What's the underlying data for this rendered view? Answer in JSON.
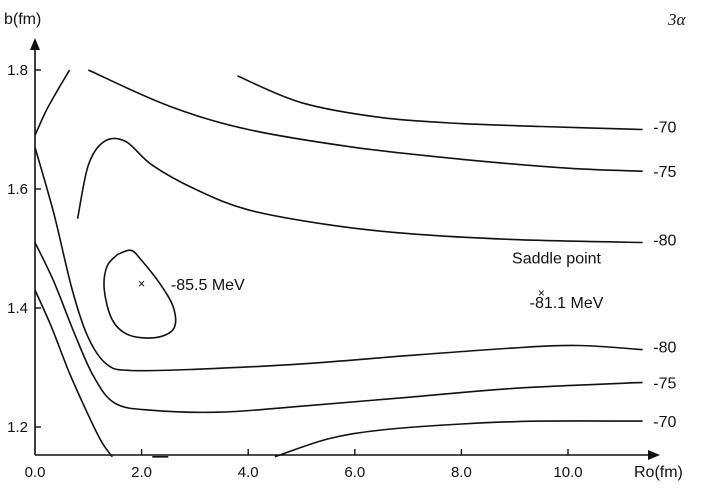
{
  "chart_data": {
    "type": "contour",
    "corner_label": "3α",
    "xlabel": "Ro(fm)",
    "ylabel": "b(fm)",
    "xlim": [
      0,
      11.5
    ],
    "ylim": [
      1.15,
      1.85
    ],
    "x_ticks": [
      {
        "value": 0,
        "label": "0.0"
      },
      {
        "value": 2,
        "label": "2.0"
      },
      {
        "value": 4,
        "label": "4.0"
      },
      {
        "value": 6,
        "label": "6.0"
      },
      {
        "value": 8,
        "label": "8.0"
      },
      {
        "value": 10,
        "label": "10.0"
      }
    ],
    "y_ticks": [
      {
        "value": 1.2,
        "label": "1.2"
      },
      {
        "value": 1.4,
        "label": "1.4"
      },
      {
        "value": 1.6,
        "label": "1.6"
      },
      {
        "value": 1.8,
        "label": "1.8"
      }
    ],
    "grid": false,
    "contours": [
      {
        "level": -70,
        "label": "-70",
        "label_at": [
          11.6,
          1.705
        ],
        "points": [
          [
            3.8,
            1.79
          ],
          [
            5.0,
            1.745
          ],
          [
            6.5,
            1.72
          ],
          [
            8.0,
            1.71
          ],
          [
            9.5,
            1.705
          ],
          [
            11.4,
            1.7
          ]
        ]
      },
      {
        "level": -70,
        "label": "",
        "label_at": null,
        "points": [
          [
            0.0,
            1.69
          ],
          [
            0.2,
            1.73
          ],
          [
            0.45,
            1.77
          ],
          [
            0.65,
            1.8
          ]
        ]
      },
      {
        "level": -75,
        "label": "-75",
        "label_at": [
          11.6,
          1.63
        ],
        "points": [
          [
            1.0,
            1.8
          ],
          [
            2.5,
            1.74
          ],
          [
            4.0,
            1.7
          ],
          [
            6.0,
            1.67
          ],
          [
            8.0,
            1.65
          ],
          [
            10.0,
            1.635
          ],
          [
            11.4,
            1.63
          ]
        ]
      },
      {
        "level": -80,
        "label": "-80",
        "label_at": [
          11.6,
          1.515
        ],
        "points": [
          [
            0.0,
            1.67
          ],
          [
            0.35,
            1.56
          ],
          [
            0.7,
            1.43
          ],
          [
            1.0,
            1.35
          ],
          [
            1.35,
            1.305
          ],
          [
            1.8,
            1.295
          ],
          [
            3.0,
            1.297
          ],
          [
            5.0,
            1.306
          ],
          [
            7.0,
            1.32
          ],
          [
            9.0,
            1.333
          ],
          [
            10.2,
            1.337
          ],
          [
            11.4,
            1.33
          ]
        ]
      },
      {
        "level": -80,
        "label": "-80",
        "label_at": [
          11.6,
          1.335
        ],
        "points": [
          [
            0.8,
            1.55
          ],
          [
            1.0,
            1.64
          ],
          [
            1.3,
            1.68
          ],
          [
            1.7,
            1.68
          ],
          [
            2.2,
            1.64
          ],
          [
            3.0,
            1.6
          ],
          [
            4.0,
            1.565
          ],
          [
            5.5,
            1.54
          ],
          [
            7.0,
            1.525
          ],
          [
            9.0,
            1.515
          ],
          [
            11.4,
            1.51
          ]
        ]
      },
      {
        "level": -75,
        "label": "-75",
        "label_at": [
          11.6,
          1.275
        ],
        "points": [
          [
            0.0,
            1.51
          ],
          [
            0.35,
            1.445
          ],
          [
            0.75,
            1.355
          ],
          [
            1.1,
            1.285
          ],
          [
            1.5,
            1.24
          ],
          [
            2.2,
            1.228
          ],
          [
            3.5,
            1.225
          ],
          [
            5.0,
            1.235
          ],
          [
            7.0,
            1.25
          ],
          [
            9.0,
            1.265
          ],
          [
            11.4,
            1.275
          ]
        ]
      },
      {
        "level": -70,
        "label": "-70",
        "label_at": [
          11.6,
          1.21
        ],
        "points": [
          [
            0.0,
            1.43
          ],
          [
            0.3,
            1.37
          ],
          [
            0.65,
            1.29
          ],
          [
            1.0,
            1.22
          ],
          [
            1.25,
            1.175
          ],
          [
            1.45,
            1.15
          ]
        ]
      },
      {
        "level": -70,
        "label": "",
        "label_at": null,
        "points": [
          [
            2.2,
            1.15
          ],
          [
            2.5,
            1.15
          ]
        ]
      },
      {
        "level": -70,
        "label": "",
        "label_at": null,
        "points": [
          [
            4.5,
            1.15
          ],
          [
            5.5,
            1.18
          ],
          [
            6.5,
            1.195
          ],
          [
            8.0,
            1.205
          ],
          [
            9.5,
            1.21
          ],
          [
            11.4,
            1.21
          ]
        ]
      }
    ],
    "minimum_contour": {
      "label": "-85.5 MeV",
      "center": [
        2.0,
        1.44
      ],
      "points": [
        [
          1.55,
          1.49
        ],
        [
          1.35,
          1.47
        ],
        [
          1.3,
          1.43
        ],
        [
          1.45,
          1.38
        ],
        [
          1.75,
          1.355
        ],
        [
          2.25,
          1.35
        ],
        [
          2.6,
          1.365
        ],
        [
          2.6,
          1.4
        ],
        [
          2.35,
          1.44
        ],
        [
          2.0,
          1.48
        ],
        [
          1.8,
          1.497
        ],
        [
          1.55,
          1.49
        ]
      ]
    },
    "saddle_point": {
      "title": "Saddle point",
      "value_label": "-81.1 MeV",
      "point": [
        9.5,
        1.425
      ]
    }
  }
}
